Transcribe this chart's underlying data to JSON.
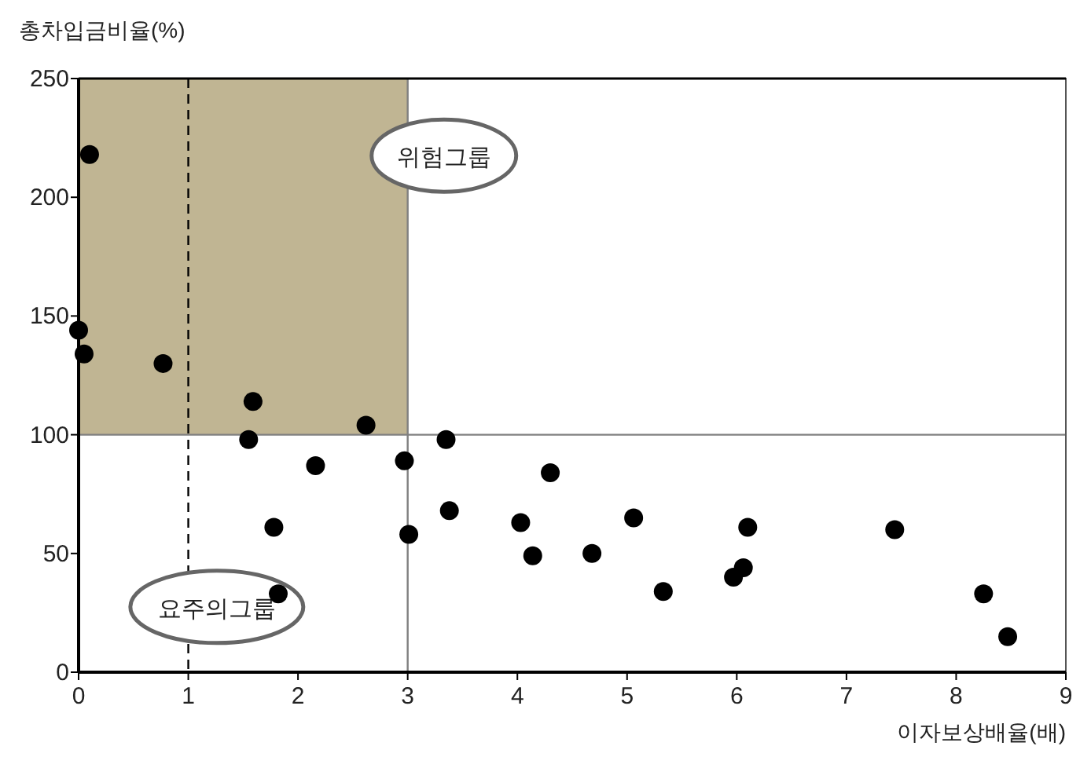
{
  "chart_data": {
    "type": "scatter",
    "xlabel": "이자보상배율(배)",
    "ylabel": "총차입금비율(%)",
    "x": [
      0.1,
      0,
      0.05,
      0.77,
      1.59,
      1.55,
      2.16,
      1.78,
      1.82,
      2.62,
      2.97,
      3.01,
      3.35,
      3.38,
      4.03,
      4.14,
      4.3,
      4.68,
      5.06,
      5.33,
      5.97,
      6.06,
      6.1,
      7.44,
      8.25,
      8.47
    ],
    "values": [
      218,
      144,
      134,
      130,
      114,
      98,
      87,
      61,
      33,
      104,
      89,
      58,
      98,
      68,
      63,
      49,
      84,
      50,
      65,
      34,
      40,
      44,
      61,
      60,
      33,
      15
    ],
    "color": "#000000",
    "marker": "circle",
    "grid": false,
    "xlim": [
      0,
      9
    ],
    "xticks": [
      0,
      1,
      2,
      3,
      4,
      5,
      6,
      7,
      8,
      9
    ],
    "ylim": [
      0,
      250
    ],
    "yticks": [
      0,
      50,
      100,
      150,
      200,
      250
    ],
    "ref_lines": [
      {
        "axis": "x",
        "value": 1,
        "line_style": "dashed",
        "color": "#000000"
      },
      {
        "axis": "x",
        "value": 3,
        "color": "#808080"
      },
      {
        "axis": "y",
        "value": 100,
        "color": "#808080"
      }
    ],
    "bands": [
      {
        "axis": "x",
        "from": 0,
        "to": 3,
        "color": "#c0b593"
      }
    ],
    "annotations": [
      "위험그룹",
      "요주의그룹"
    ]
  }
}
